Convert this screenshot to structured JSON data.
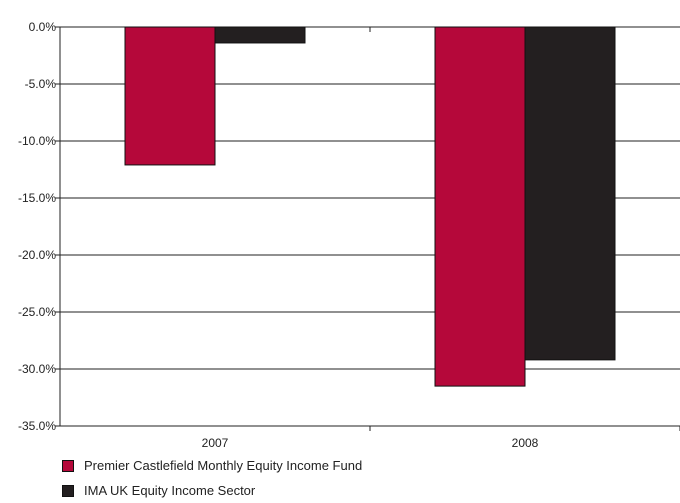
{
  "chart_data": {
    "type": "bar",
    "categories": [
      "2007",
      "2008"
    ],
    "series": [
      {
        "name": "Premier Castlefield Monthly Equity Income Fund",
        "values": [
          -12.1,
          -31.5
        ],
        "color": "#b5083a"
      },
      {
        "name": "IMA UK Equity Income Sector",
        "values": [
          -1.4,
          -29.2
        ],
        "color": "#231f20"
      }
    ],
    "y_ticks": [
      "0.0%",
      "-5.0%",
      "-10.0%",
      "-15.0%",
      "-20.0%",
      "-25.0%",
      "-30.0%",
      "-35.0%"
    ],
    "ylim": [
      -35,
      0
    ],
    "grid": true,
    "legend": "bottom-left",
    "title": "",
    "xlabel": "",
    "ylabel": ""
  }
}
